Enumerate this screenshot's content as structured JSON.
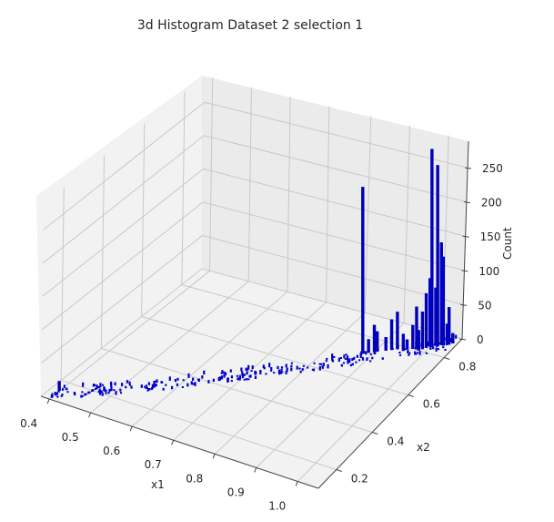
{
  "chart_data": {
    "type": "bar3d",
    "title": "3d Histogram Dataset 2 selection 1",
    "xlabel": "x1",
    "ylabel": "x2",
    "zlabel": "Count",
    "x_ticks": [
      "0.4",
      "0.5",
      "0.6",
      "0.7",
      "0.8",
      "0.9",
      "1.0"
    ],
    "y_ticks": [
      "0.2",
      "0.4",
      "0.6",
      "0.8"
    ],
    "z_ticks": [
      "0",
      "50",
      "100",
      "150",
      "200",
      "250"
    ],
    "xlim": [
      0.38,
      1.05
    ],
    "ylim": [
      0.1,
      0.9
    ],
    "zlim": [
      0,
      290
    ],
    "bar_color": "#0000cc",
    "grid": true,
    "note": "Sparse histogram: many bins with small counts along a diagonal band from (x1~0.4,x2~0.1) to (x1~1.0,x2~0.85); several tall spikes near x1~0.95-1.0, x2~0.75-0.85",
    "bars": [
      {
        "x1": 0.4,
        "x2": 0.15,
        "count": 15
      },
      {
        "x1": 0.88,
        "x2": 0.72,
        "count": 245
      },
      {
        "x1": 0.89,
        "x2": 0.73,
        "count": 20
      },
      {
        "x1": 0.9,
        "x2": 0.74,
        "count": 40
      },
      {
        "x1": 0.905,
        "x2": 0.745,
        "count": 30
      },
      {
        "x1": 0.92,
        "x2": 0.76,
        "count": 20
      },
      {
        "x1": 0.93,
        "x2": 0.77,
        "count": 45
      },
      {
        "x1": 0.94,
        "x2": 0.78,
        "count": 55
      },
      {
        "x1": 0.955,
        "x2": 0.78,
        "count": 25
      },
      {
        "x1": 0.96,
        "x2": 0.79,
        "count": 15
      },
      {
        "x1": 0.97,
        "x2": 0.8,
        "count": 35
      },
      {
        "x1": 0.975,
        "x2": 0.81,
        "count": 60
      },
      {
        "x1": 0.985,
        "x2": 0.8,
        "count": 30
      },
      {
        "x1": 0.99,
        "x2": 0.81,
        "count": 55
      },
      {
        "x1": 0.995,
        "x2": 0.82,
        "count": 80
      },
      {
        "x1": 1.0,
        "x2": 0.83,
        "count": 100
      },
      {
        "x1": 1.005,
        "x2": 0.83,
        "count": 290
      },
      {
        "x1": 1.01,
        "x2": 0.84,
        "count": 85
      },
      {
        "x1": 1.015,
        "x2": 0.84,
        "count": 265
      },
      {
        "x1": 1.02,
        "x2": 0.85,
        "count": 150
      },
      {
        "x1": 1.025,
        "x2": 0.85,
        "count": 130
      },
      {
        "x1": 1.03,
        "x2": 0.86,
        "count": 30
      },
      {
        "x1": 1.035,
        "x2": 0.86,
        "count": 55
      },
      {
        "x1": 1.04,
        "x2": 0.87,
        "count": 15
      }
    ]
  }
}
